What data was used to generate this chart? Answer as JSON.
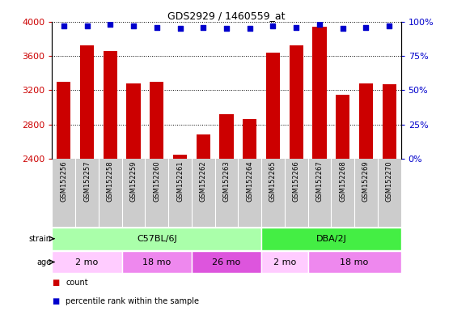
{
  "title": "GDS2929 / 1460559_at",
  "samples": [
    "GSM152256",
    "GSM152257",
    "GSM152258",
    "GSM152259",
    "GSM152260",
    "GSM152261",
    "GSM152262",
    "GSM152263",
    "GSM152264",
    "GSM152265",
    "GSM152266",
    "GSM152267",
    "GSM152268",
    "GSM152269",
    "GSM152270"
  ],
  "counts": [
    3300,
    3720,
    3660,
    3280,
    3300,
    2450,
    2680,
    2920,
    2860,
    3640,
    3720,
    3940,
    3150,
    3280,
    3270
  ],
  "percentile_ranks": [
    97,
    97,
    98,
    97,
    96,
    95,
    96,
    95,
    95,
    97,
    96,
    98,
    95,
    96,
    97
  ],
  "bar_color": "#cc0000",
  "dot_color": "#0000cc",
  "ylim_left": [
    2400,
    4000
  ],
  "ylim_right": [
    0,
    100
  ],
  "yticks_left": [
    2400,
    2800,
    3200,
    3600,
    4000
  ],
  "yticks_right": [
    0,
    25,
    50,
    75,
    100
  ],
  "strain_labels": [
    {
      "label": "C57BL/6J",
      "start": 0,
      "end": 9,
      "color": "#aaffaa"
    },
    {
      "label": "DBA/2J",
      "start": 9,
      "end": 15,
      "color": "#44ee44"
    }
  ],
  "age_groups": [
    {
      "label": "2 mo",
      "start": 0,
      "end": 3,
      "color": "#ffccff"
    },
    {
      "label": "18 mo",
      "start": 3,
      "end": 6,
      "color": "#ee88ee"
    },
    {
      "label": "26 mo",
      "start": 6,
      "end": 9,
      "color": "#dd55dd"
    },
    {
      "label": "2 mo",
      "start": 9,
      "end": 11,
      "color": "#ffccff"
    },
    {
      "label": "18 mo",
      "start": 11,
      "end": 15,
      "color": "#ee88ee"
    }
  ],
  "legend_count_color": "#cc0000",
  "legend_pct_color": "#0000cc",
  "left_tick_color": "#cc0000",
  "right_tick_color": "#0000cc",
  "label_bg": "#cccccc",
  "bar_width": 0.6
}
